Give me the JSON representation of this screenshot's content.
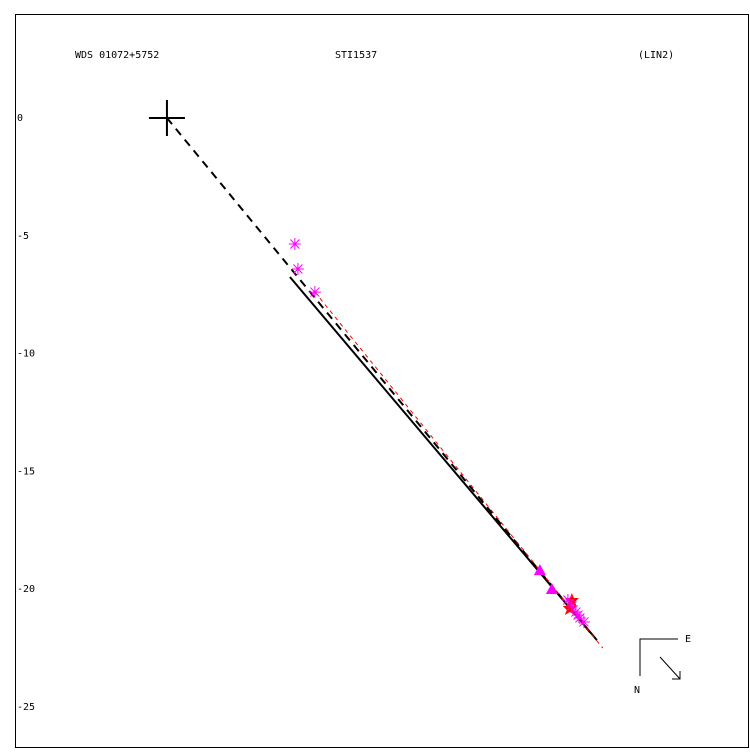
{
  "chart_data": {
    "type": "scatter",
    "title": "WDS 01072+5752",
    "subtitle": "STI1537",
    "annotation": "(LIN2)",
    "compass": {
      "east": "E",
      "north": "N"
    },
    "xlim": [
      -6.45,
      24.75
    ],
    "ylim": [
      -26.74,
      4.37
    ],
    "yticks": [
      0,
      -5,
      -10,
      -15,
      -20,
      -25
    ],
    "series": [
      {
        "marker": "dashed",
        "color": "#000000",
        "x": [
          0,
          17.95
        ],
        "values": [
          0,
          -21.82
        ]
      },
      {
        "marker": "line",
        "color": "#000000",
        "x": [
          5.22,
          18.25
        ],
        "values": [
          -6.75,
          -22.16
        ]
      },
      {
        "marker": "thin-dashed",
        "color": "#ff0000",
        "x": [
          6.28,
          18.5
        ],
        "values": [
          -7.39,
          -22.5
        ]
      },
      {
        "marker": "cross",
        "color": "#000000",
        "x": [
          0
        ],
        "values": [
          0
        ]
      },
      {
        "marker": "asterisk",
        "color": "#ff00ff",
        "x": [
          5.43,
          5.56,
          6.28
        ],
        "values": [
          -5.35,
          -6.41,
          -7.39
        ]
      },
      {
        "marker": "triangle",
        "color": "#ff00ff",
        "x": [
          15.83,
          16.34
        ],
        "values": [
          -19.19,
          -19.99
        ]
      },
      {
        "marker": "star",
        "color": "#ff0000",
        "x": [
          17.19,
          17.1
        ],
        "values": [
          -20.46,
          -20.8
        ]
      },
      {
        "marker": "asterisk",
        "color": "#ff00ff",
        "x": [
          17.02,
          17.19,
          17.36,
          17.53,
          17.7,
          17.45
        ],
        "values": [
          -20.46,
          -20.71,
          -20.97,
          -21.22,
          -21.39,
          -21.1
        ]
      }
    ]
  }
}
